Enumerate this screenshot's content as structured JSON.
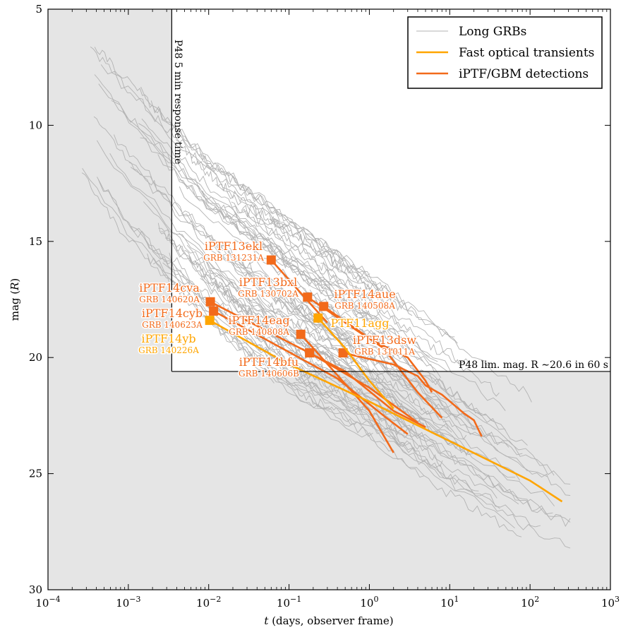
{
  "chart_data": {
    "type": "line",
    "xlabel": "t (days, observer frame)",
    "ylabel": "mag (R)",
    "xscale": "log",
    "xlim": [
      0.0001,
      1000
    ],
    "ylim": [
      30,
      5
    ],
    "y_inverted": true,
    "grid": false,
    "legend_position": "top-right",
    "colors": {
      "long_grbs": "#b3b3b3",
      "fast_optical": "#ffa500",
      "iptf_gbm": "#f26a1b",
      "shaded_region": "#e5e5e5"
    },
    "x_ticks": [
      {
        "base": "10",
        "exp": "−4"
      },
      {
        "base": "10",
        "exp": "−3"
      },
      {
        "base": "10",
        "exp": "−2"
      },
      {
        "base": "10",
        "exp": "−1"
      },
      {
        "base": "10",
        "exp": "0"
      },
      {
        "base": "10",
        "exp": "1"
      },
      {
        "base": "10",
        "exp": "2"
      },
      {
        "base": "10",
        "exp": "3"
      }
    ],
    "y_ticks": [
      "5",
      "10",
      "15",
      "20",
      "25",
      "30"
    ],
    "legend": [
      {
        "label": "Long GRBs",
        "series": "long_grbs"
      },
      {
        "label": "Fast optical transients",
        "series": "fast_optical"
      },
      {
        "label": "iPTF/GBM detections",
        "series": "iptf_gbm"
      }
    ],
    "annotations": {
      "response_time": {
        "text": "P48 5 min response time",
        "t": 0.00347
      },
      "limiting_mag": {
        "text": "P48 lim. mag. R ∼20.6 in 60 s",
        "mag": 20.6
      }
    },
    "transients": [
      {
        "name": "iPTF13ekl",
        "grb": "GRB 131231A",
        "kind": "iptf_gbm",
        "t": [
          0.06,
          0.3
        ],
        "mag": [
          15.8,
          18.5
        ]
      },
      {
        "name": "iPTF13bxl",
        "grb": "GRB 130702A",
        "kind": "iptf_gbm",
        "t": [
          0.17,
          1.0,
          3.0,
          5.0,
          6.0
        ],
        "mag": [
          17.4,
          19.2,
          20.0,
          21.0,
          21.5
        ]
      },
      {
        "name": "iPTF14aue",
        "grb": "GRB 140508A",
        "kind": "iptf_gbm",
        "t": [
          0.27,
          1.5,
          4.0,
          8.0
        ],
        "mag": [
          17.8,
          19.6,
          21.5,
          22.6
        ]
      },
      {
        "name": "iPTF14cva",
        "grb": "GRB 140620A",
        "kind": "iptf_gbm",
        "t": [
          0.0105,
          0.5,
          2.0,
          5.0
        ],
        "mag": [
          17.6,
          20.6,
          22.3,
          23.0
        ]
      },
      {
        "name": "iPTF14cyb",
        "grb": "GRB 140623A",
        "kind": "iptf_gbm",
        "t": [
          0.0115,
          0.4,
          1.5,
          3.0
        ],
        "mag": [
          18.0,
          20.9,
          22.5,
          23.3
        ]
      },
      {
        "name": "iPTF14eag",
        "grb": "GRB 140808A",
        "kind": "iptf_gbm",
        "t": [
          0.14,
          1.0,
          2.0
        ],
        "mag": [
          19.0,
          22.3,
          24.1
        ]
      },
      {
        "name": "iPTF14bfu",
        "grb": "GRB 140606B",
        "kind": "iptf_gbm",
        "t": [
          0.18,
          1.0,
          4.0
        ],
        "mag": [
          19.8,
          21.3,
          22.8
        ]
      },
      {
        "name": "iPTF13dsw",
        "grb": "GRB 131011A",
        "kind": "iptf_gbm",
        "t": [
          0.47,
          2.0,
          4.0,
          5.0,
          8.0,
          15.0,
          20.0,
          25.0
        ],
        "mag": [
          19.8,
          20.3,
          20.8,
          21.2,
          21.6,
          22.4,
          22.7,
          23.4
        ]
      },
      {
        "name": "iPTF14yb",
        "grb": "GRB 140226A",
        "kind": "fast_optical",
        "t": [
          0.0103,
          0.1,
          1.0,
          10.0,
          100.0,
          250.0
        ],
        "mag": [
          18.4,
          20.3,
          21.9,
          23.6,
          25.3,
          26.2
        ]
      },
      {
        "name": "PTF11agg",
        "grb": "",
        "kind": "fast_optical",
        "t": [
          0.23,
          0.5,
          1.0,
          2.0
        ],
        "mag": [
          18.3,
          19.6,
          21.0,
          22.2
        ]
      }
    ],
    "long_grbs_envelope": {
      "t": [
        0.00025,
        0.001,
        0.01,
        0.1,
        1.0,
        10.0,
        100.0,
        300.0
      ],
      "mag_bright": [
        5.8,
        8.0,
        11.5,
        14.0,
        16.5,
        19.0,
        21.5,
        23.0
      ],
      "mag_faint": [
        12.0,
        15.0,
        18.5,
        21.5,
        23.5,
        26.0,
        28.0,
        28.5
      ]
    }
  }
}
